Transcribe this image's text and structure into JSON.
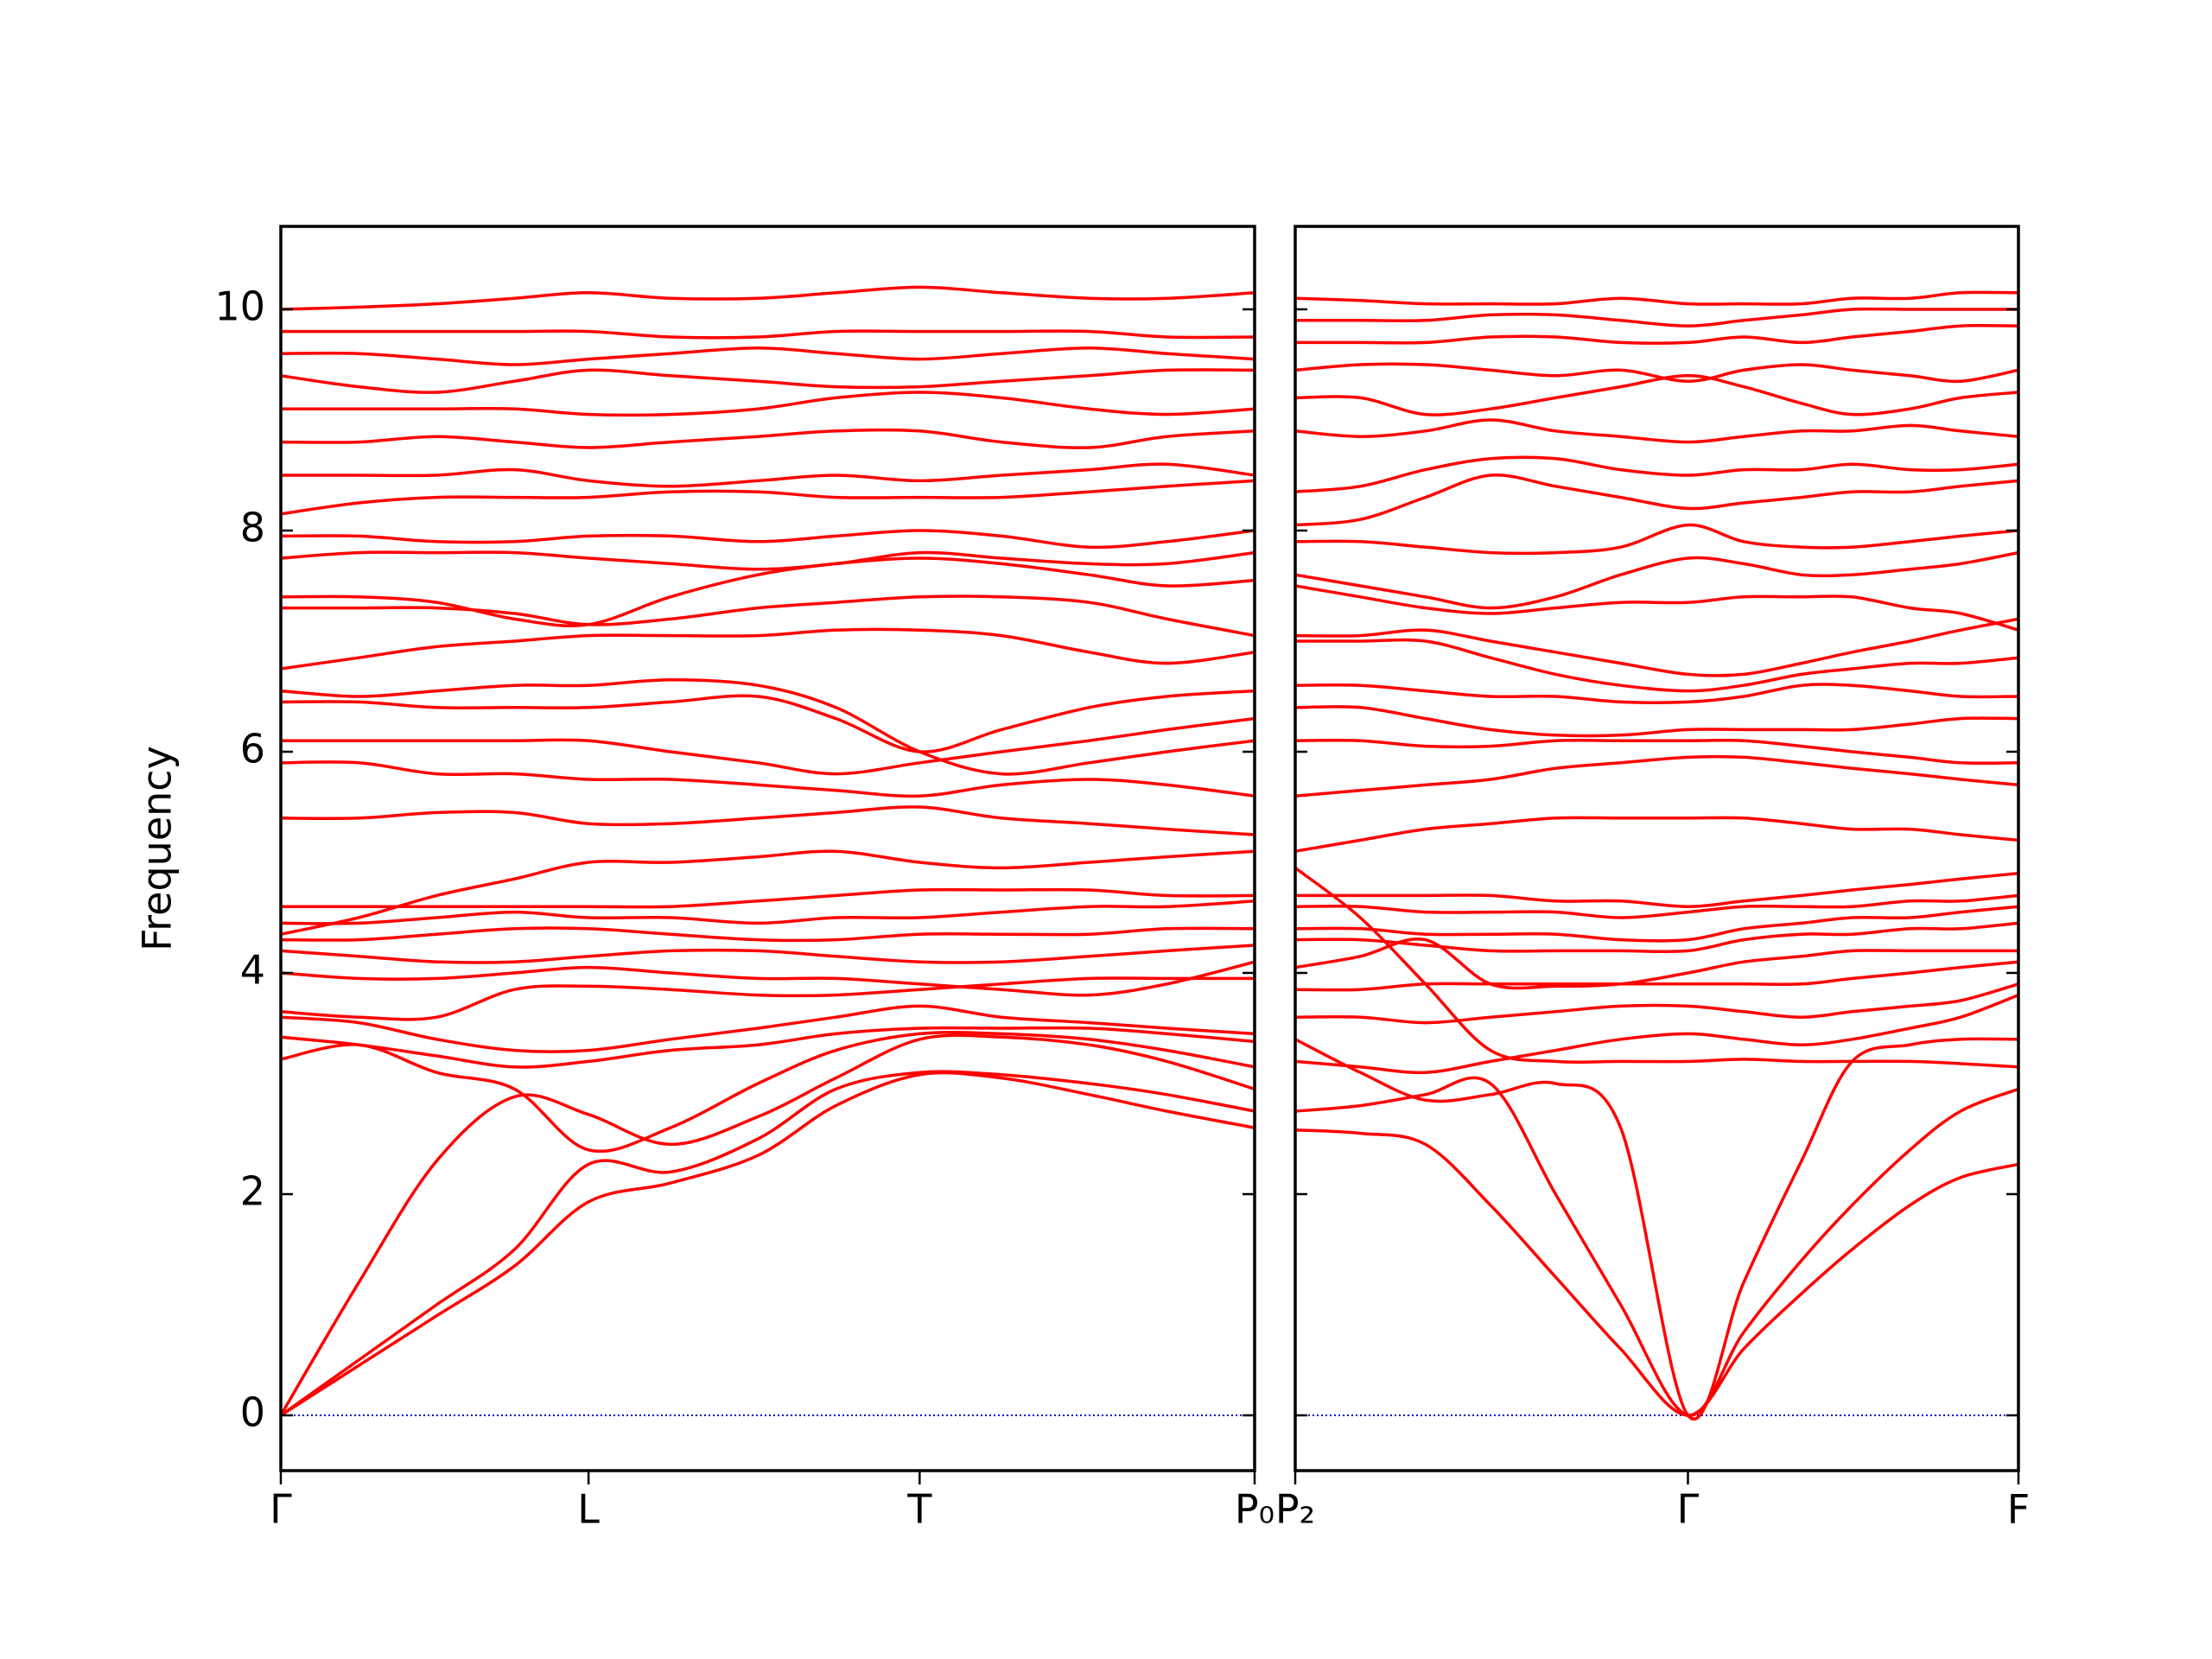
{
  "chart_data": [
    {
      "type": "line",
      "ylabel": "Frequency",
      "color": "#ff0000",
      "hline": 0,
      "hline_color": "#0000cc",
      "xlim": [
        0,
        1
      ],
      "ylim": [
        -0.5,
        10.75
      ],
      "xticks": [
        {
          "value": 0,
          "label": "Γ"
        },
        {
          "value": 0.316,
          "label": "L"
        },
        {
          "value": 0.656,
          "label": "T"
        },
        {
          "value": 1,
          "label": "P₀"
        }
      ],
      "yticks": [
        0,
        2,
        4,
        6,
        8,
        10
      ],
      "x": [
        0,
        0.08,
        0.16,
        0.24,
        0.316,
        0.4,
        0.49,
        0.57,
        0.656,
        0.74,
        0.83,
        0.91,
        1
      ],
      "series": [
        {
          "values": [
            0,
            0.45,
            0.9,
            1.35,
            1.93,
            2.1,
            2.35,
            2.8,
            3.08,
            3.05,
            2.9,
            2.75,
            2.6
          ]
        },
        {
          "values": [
            0,
            0.5,
            1.0,
            1.5,
            2.27,
            2.2,
            2.5,
            2.95,
            3.1,
            3.08,
            3.0,
            2.9,
            2.75
          ]
        },
        {
          "values": [
            0,
            1.2,
            2.3,
            2.88,
            2.72,
            2.45,
            2.7,
            3.05,
            3.4,
            3.42,
            3.35,
            3.2,
            2.95
          ]
        },
        {
          "values": [
            3.22,
            3.35,
            3.1,
            2.95,
            2.4,
            2.6,
            3.0,
            3.3,
            3.45,
            3.45,
            3.4,
            3.3,
            3.15
          ]
        },
        {
          "values": [
            3.42,
            3.35,
            3.25,
            3.15,
            3.2,
            3.3,
            3.35,
            3.45,
            3.5,
            3.5,
            3.5,
            3.45,
            3.38
          ]
        },
        {
          "values": [
            3.6,
            3.55,
            3.4,
            3.3,
            3.3,
            3.4,
            3.5,
            3.6,
            3.7,
            3.6,
            3.55,
            3.5,
            3.45
          ]
        },
        {
          "values": [
            3.65,
            3.6,
            3.6,
            3.85,
            3.88,
            3.85,
            3.8,
            3.8,
            3.85,
            3.9,
            3.95,
            3.95,
            3.95
          ]
        },
        {
          "values": [
            4.0,
            3.95,
            3.95,
            4.0,
            4.05,
            4.0,
            3.95,
            3.95,
            3.9,
            3.85,
            3.8,
            3.9,
            4.1
          ]
        },
        {
          "values": [
            4.2,
            4.15,
            4.1,
            4.1,
            4.15,
            4.2,
            4.2,
            4.15,
            4.1,
            4.1,
            4.15,
            4.2,
            4.25
          ]
        },
        {
          "values": [
            4.3,
            4.3,
            4.35,
            4.4,
            4.4,
            4.35,
            4.3,
            4.3,
            4.35,
            4.35,
            4.35,
            4.4,
            4.4
          ]
        },
        {
          "values": [
            4.45,
            4.45,
            4.5,
            4.55,
            4.5,
            4.5,
            4.45,
            4.5,
            4.5,
            4.55,
            4.6,
            4.6,
            4.65
          ]
        },
        {
          "values": [
            4.6,
            4.6,
            4.6,
            4.6,
            4.6,
            4.6,
            4.65,
            4.7,
            4.75,
            4.75,
            4.75,
            4.7,
            4.7
          ]
        },
        {
          "values": [
            4.35,
            4.5,
            4.7,
            4.85,
            5.0,
            5.0,
            5.05,
            5.1,
            5.0,
            4.95,
            5.0,
            5.05,
            5.1
          ]
        },
        {
          "values": [
            5.4,
            5.4,
            5.45,
            5.45,
            5.35,
            5.35,
            5.4,
            5.45,
            5.5,
            5.4,
            5.35,
            5.3,
            5.25
          ]
        },
        {
          "values": [
            5.9,
            5.9,
            5.8,
            5.8,
            5.75,
            5.75,
            5.7,
            5.65,
            5.6,
            5.7,
            5.75,
            5.7,
            5.6
          ]
        },
        {
          "values": [
            6.1,
            6.1,
            6.1,
            6.1,
            6.1,
            6.0,
            5.9,
            5.8,
            5.9,
            6.0,
            6.1,
            6.2,
            6.3
          ]
        },
        {
          "values": [
            6.45,
            6.45,
            6.4,
            6.4,
            6.4,
            6.45,
            6.5,
            6.3,
            6.0,
            6.2,
            6.4,
            6.5,
            6.55
          ]
        },
        {
          "values": [
            6.55,
            6.5,
            6.55,
            6.6,
            6.6,
            6.65,
            6.6,
            6.4,
            6.0,
            5.8,
            5.9,
            6.0,
            6.1
          ]
        },
        {
          "values": [
            6.75,
            6.85,
            6.95,
            7.0,
            7.05,
            7.05,
            7.05,
            7.1,
            7.1,
            7.05,
            6.9,
            6.8,
            6.9
          ]
        },
        {
          "values": [
            7.3,
            7.3,
            7.3,
            7.25,
            7.15,
            7.2,
            7.3,
            7.35,
            7.4,
            7.4,
            7.35,
            7.2,
            7.05
          ]
        },
        {
          "values": [
            7.4,
            7.4,
            7.35,
            7.2,
            7.15,
            7.4,
            7.6,
            7.7,
            7.75,
            7.7,
            7.6,
            7.5,
            7.55
          ]
        },
        {
          "values": [
            7.75,
            7.8,
            7.8,
            7.8,
            7.75,
            7.7,
            7.65,
            7.7,
            7.8,
            7.75,
            7.7,
            7.7,
            7.8
          ]
        },
        {
          "values": [
            7.95,
            7.95,
            7.9,
            7.9,
            7.95,
            7.95,
            7.9,
            7.95,
            8.0,
            7.95,
            7.85,
            7.9,
            8.0
          ]
        },
        {
          "values": [
            8.15,
            8.25,
            8.3,
            8.3,
            8.3,
            8.35,
            8.35,
            8.3,
            8.3,
            8.3,
            8.35,
            8.4,
            8.45
          ]
        },
        {
          "values": [
            8.5,
            8.5,
            8.5,
            8.55,
            8.45,
            8.4,
            8.45,
            8.5,
            8.45,
            8.5,
            8.55,
            8.6,
            8.5
          ]
        },
        {
          "values": [
            8.8,
            8.8,
            8.85,
            8.8,
            8.75,
            8.8,
            8.85,
            8.9,
            8.9,
            8.8,
            8.75,
            8.85,
            8.9
          ]
        },
        {
          "values": [
            9.1,
            9.1,
            9.1,
            9.1,
            9.05,
            9.05,
            9.1,
            9.2,
            9.25,
            9.2,
            9.1,
            9.05,
            9.1
          ]
        },
        {
          "values": [
            9.4,
            9.3,
            9.25,
            9.35,
            9.45,
            9.4,
            9.35,
            9.3,
            9.3,
            9.35,
            9.4,
            9.45,
            9.45
          ]
        },
        {
          "values": [
            9.6,
            9.6,
            9.55,
            9.5,
            9.55,
            9.6,
            9.65,
            9.6,
            9.55,
            9.6,
            9.65,
            9.6,
            9.55
          ]
        },
        {
          "values": [
            9.8,
            9.8,
            9.8,
            9.8,
            9.8,
            9.75,
            9.75,
            9.8,
            9.8,
            9.8,
            9.8,
            9.75,
            9.75
          ]
        },
        {
          "values": [
            10.0,
            10.02,
            10.05,
            10.1,
            10.15,
            10.1,
            10.1,
            10.15,
            10.2,
            10.15,
            10.1,
            10.1,
            10.15
          ]
        }
      ]
    },
    {
      "type": "line",
      "color": "#ff0000",
      "hline": 0,
      "hline_color": "#0000cc",
      "xlim": [
        0,
        1
      ],
      "ylim": [
        -0.5,
        10.75
      ],
      "xticks": [
        {
          "value": 0,
          "label": "P₂"
        },
        {
          "value": 0.543,
          "label": "Γ"
        },
        {
          "value": 1,
          "label": "F"
        }
      ],
      "yticks": [
        0,
        2,
        4,
        6,
        8,
        10
      ],
      "x": [
        0,
        0.09,
        0.18,
        0.27,
        0.36,
        0.45,
        0.543,
        0.62,
        0.7,
        0.77,
        0.85,
        0.92,
        1
      ],
      "series": [
        {
          "values": [
            2.58,
            2.55,
            2.45,
            1.9,
            1.25,
            0.6,
            0,
            0.6,
            1.1,
            1.5,
            1.9,
            2.15,
            2.27
          ]
        },
        {
          "values": [
            2.75,
            2.8,
            2.9,
            3.0,
            2.0,
            1.0,
            0,
            0.75,
            1.4,
            1.9,
            2.4,
            2.75,
            2.95
          ]
        },
        {
          "values": [
            3.4,
            3.1,
            2.85,
            2.9,
            3.0,
            2.6,
            0,
            1.2,
            2.3,
            3.2,
            3.35,
            3.4,
            3.4
          ]
        },
        {
          "values": [
            4.95,
            4.5,
            3.9,
            3.3,
            3.2,
            3.2,
            3.2,
            3.22,
            3.2,
            3.2,
            3.2,
            3.18,
            3.15
          ]
        },
        {
          "values": [
            3.2,
            3.15,
            3.1,
            3.2,
            3.3,
            3.4,
            3.45,
            3.4,
            3.35,
            3.4,
            3.5,
            3.6,
            3.8
          ]
        },
        {
          "values": [
            3.6,
            3.6,
            3.55,
            3.6,
            3.65,
            3.7,
            3.7,
            3.65,
            3.6,
            3.65,
            3.7,
            3.75,
            3.9
          ]
        },
        {
          "values": [
            3.85,
            3.85,
            3.9,
            3.9,
            3.9,
            3.9,
            3.9,
            3.9,
            3.9,
            3.95,
            4.0,
            4.05,
            4.1
          ]
        },
        {
          "values": [
            4.05,
            4.15,
            4.3,
            3.9,
            3.88,
            3.9,
            4.0,
            4.1,
            4.15,
            4.2,
            4.2,
            4.2,
            4.2
          ]
        },
        {
          "values": [
            4.3,
            4.3,
            4.25,
            4.2,
            4.2,
            4.2,
            4.2,
            4.3,
            4.35,
            4.35,
            4.4,
            4.4,
            4.45
          ]
        },
        {
          "values": [
            4.4,
            4.4,
            4.35,
            4.35,
            4.35,
            4.3,
            4.3,
            4.4,
            4.45,
            4.5,
            4.5,
            4.55,
            4.6
          ]
        },
        {
          "values": [
            4.6,
            4.6,
            4.55,
            4.55,
            4.55,
            4.5,
            4.55,
            4.6,
            4.6,
            4.6,
            4.65,
            4.65,
            4.7
          ]
        },
        {
          "values": [
            4.7,
            4.7,
            4.7,
            4.7,
            4.65,
            4.65,
            4.6,
            4.65,
            4.7,
            4.75,
            4.8,
            4.85,
            4.9
          ]
        },
        {
          "values": [
            5.1,
            5.2,
            5.3,
            5.35,
            5.4,
            5.4,
            5.4,
            5.4,
            5.35,
            5.3,
            5.3,
            5.25,
            5.2
          ]
        },
        {
          "values": [
            5.6,
            5.65,
            5.7,
            5.75,
            5.85,
            5.9,
            5.95,
            5.95,
            5.9,
            5.85,
            5.8,
            5.75,
            5.7
          ]
        },
        {
          "values": [
            6.1,
            6.1,
            6.05,
            6.05,
            6.1,
            6.1,
            6.1,
            6.1,
            6.05,
            6.0,
            5.95,
            5.9,
            5.9
          ]
        },
        {
          "values": [
            6.4,
            6.4,
            6.3,
            6.2,
            6.15,
            6.15,
            6.2,
            6.2,
            6.2,
            6.2,
            6.25,
            6.3,
            6.3
          ]
        },
        {
          "values": [
            6.6,
            6.6,
            6.55,
            6.5,
            6.5,
            6.45,
            6.45,
            6.5,
            6.6,
            6.6,
            6.55,
            6.5,
            6.5
          ]
        },
        {
          "values": [
            7.0,
            7.0,
            7.0,
            6.85,
            6.7,
            6.6,
            6.55,
            6.6,
            6.7,
            6.75,
            6.8,
            6.8,
            6.85
          ]
        },
        {
          "values": [
            7.05,
            7.05,
            7.1,
            7.0,
            6.9,
            6.8,
            6.7,
            6.7,
            6.8,
            6.9,
            7.0,
            7.1,
            7.2
          ]
        },
        {
          "values": [
            7.5,
            7.4,
            7.3,
            7.25,
            7.3,
            7.35,
            7.35,
            7.4,
            7.4,
            7.4,
            7.3,
            7.25,
            7.1
          ]
        },
        {
          "values": [
            7.6,
            7.5,
            7.4,
            7.3,
            7.4,
            7.6,
            7.75,
            7.7,
            7.6,
            7.6,
            7.65,
            7.7,
            7.8
          ]
        },
        {
          "values": [
            7.9,
            7.9,
            7.85,
            7.8,
            7.8,
            7.85,
            8.05,
            7.9,
            7.85,
            7.85,
            7.9,
            7.95,
            8.0
          ]
        },
        {
          "values": [
            8.05,
            8.1,
            8.3,
            8.5,
            8.4,
            8.3,
            8.2,
            8.25,
            8.3,
            8.35,
            8.35,
            8.4,
            8.45
          ]
        },
        {
          "values": [
            8.35,
            8.4,
            8.55,
            8.65,
            8.65,
            8.55,
            8.5,
            8.55,
            8.55,
            8.6,
            8.55,
            8.55,
            8.6
          ]
        },
        {
          "values": [
            8.9,
            8.85,
            8.9,
            9.0,
            8.9,
            8.85,
            8.8,
            8.85,
            8.9,
            8.9,
            8.95,
            8.9,
            8.85
          ]
        },
        {
          "values": [
            9.2,
            9.2,
            9.05,
            9.1,
            9.2,
            9.3,
            9.4,
            9.3,
            9.15,
            9.05,
            9.1,
            9.2,
            9.25
          ]
        },
        {
          "values": [
            9.45,
            9.5,
            9.5,
            9.45,
            9.4,
            9.45,
            9.35,
            9.45,
            9.5,
            9.45,
            9.4,
            9.35,
            9.45
          ]
        },
        {
          "values": [
            9.7,
            9.7,
            9.7,
            9.75,
            9.75,
            9.7,
            9.7,
            9.75,
            9.7,
            9.75,
            9.8,
            9.85,
            9.85
          ]
        },
        {
          "values": [
            9.9,
            9.9,
            9.9,
            9.95,
            9.95,
            9.9,
            9.85,
            9.9,
            9.95,
            10.0,
            10.0,
            10.0,
            10.0
          ]
        },
        {
          "values": [
            10.1,
            10.08,
            10.05,
            10.05,
            10.05,
            10.1,
            10.05,
            10.05,
            10.05,
            10.1,
            10.1,
            10.15,
            10.15
          ]
        }
      ]
    }
  ]
}
